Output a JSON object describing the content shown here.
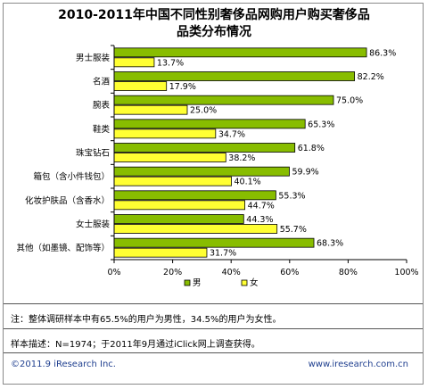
{
  "chart_data": {
    "type": "bar",
    "orientation": "horizontal",
    "title": "2010-2011年中国不同性别奢侈品网购用户购买奢侈品品类分布情况",
    "title_lines": [
      "2010-2011年中国不同性别奢侈品网购用户购买奢侈品",
      "品类分布情况"
    ],
    "categories": [
      "男士服装",
      "名酒",
      "腕表",
      "鞋类",
      "珠宝钻石",
      "箱包（含小件钱包）",
      "化妆护肤品（含香水）",
      "女士服装",
      "其他（如墨镜、配饰等）"
    ],
    "series": [
      {
        "name": "男",
        "color": "#88bd00",
        "values": [
          86.3,
          82.2,
          75.0,
          65.3,
          61.8,
          59.9,
          55.3,
          44.3,
          68.3
        ],
        "labels": [
          "86.3%",
          "82.2%",
          "75.0%",
          "65.3%",
          "61.8%",
          "59.9%",
          "55.3%",
          "44.3%",
          "68.3%"
        ]
      },
      {
        "name": "女",
        "color": "#ffff33",
        "values": [
          13.7,
          17.9,
          25.0,
          34.7,
          38.2,
          40.1,
          44.7,
          55.7,
          31.7
        ],
        "labels": [
          "13.7%",
          "17.9%",
          "25.0%",
          "34.7%",
          "38.2%",
          "40.1%",
          "44.7%",
          "55.7%",
          "31.7%"
        ]
      }
    ],
    "xlim": [
      0,
      100
    ],
    "x_ticks": [
      0,
      20,
      40,
      60,
      80,
      100
    ],
    "x_tick_labels": [
      "0%",
      "20%",
      "40%",
      "60%",
      "80%",
      "100%"
    ],
    "legend_position": "bottom-center",
    "grid": false
  },
  "footer": {
    "note": "注：整体调研样本中有65.5%的用户为男性，34.5%的用户为女性。",
    "sample": "样本描述：N=1974；于2011年9月通过iClick网上调查获得。",
    "copyright": "©2011.9 iResearch Inc.",
    "website": "www.iresearch.com.cn"
  }
}
